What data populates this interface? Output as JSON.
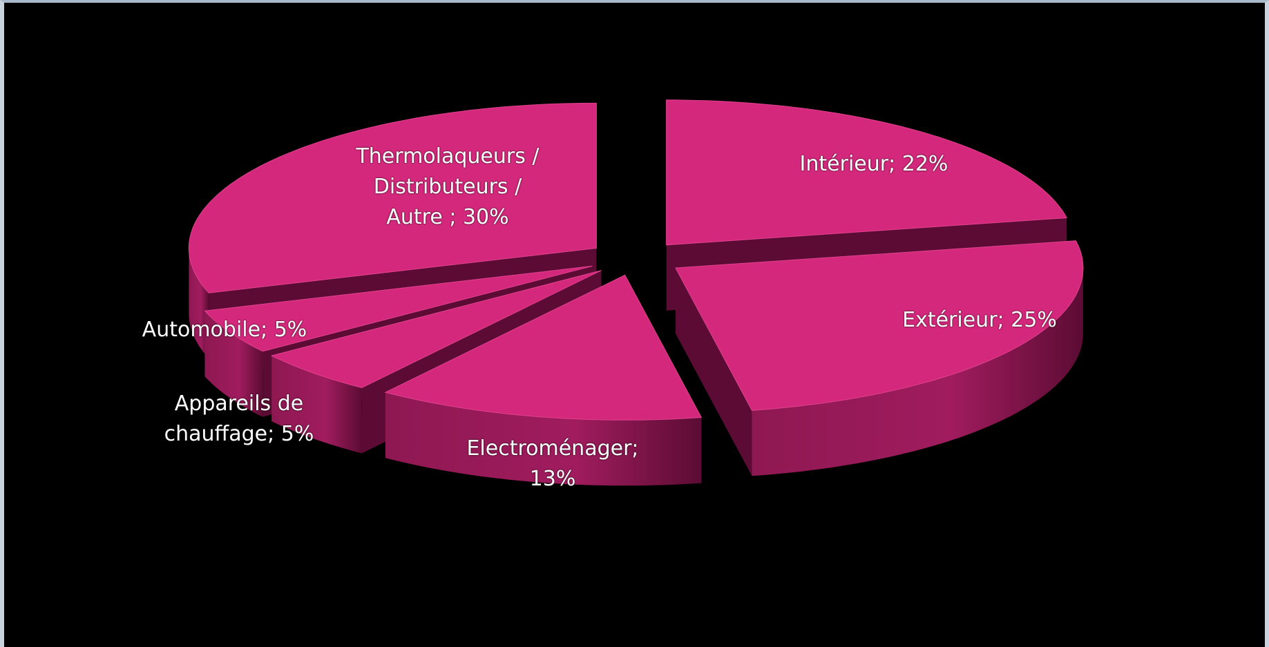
{
  "chart_data": {
    "type": "pie",
    "categories": [
      "Intérieur",
      "Extérieur",
      "Electroménager",
      "Appareils de chauffage",
      "Automobile",
      "Thermolaqueurs / Distributeurs / Autre"
    ],
    "values": [
      22,
      25,
      13,
      5,
      5,
      30
    ],
    "value_labels": [
      "; 22%",
      "; 25%",
      "; 13%",
      "; 5%",
      "; 5%",
      " ; 30%"
    ],
    "color": "#d4287c"
  }
}
